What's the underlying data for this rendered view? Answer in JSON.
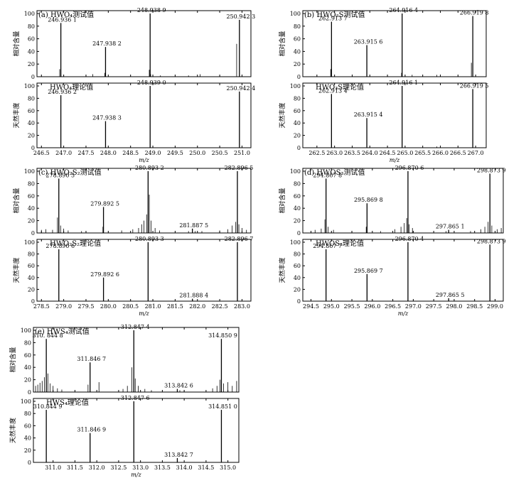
{
  "chart_data": [
    {
      "type": "bar",
      "panel": "a",
      "xlabel": "m/z",
      "xlim": [
        246.4,
        251.2
      ],
      "xticks": [
        246.5,
        247.0,
        247.5,
        248.0,
        248.5,
        249.0,
        249.5,
        250.0,
        250.5,
        251.0
      ],
      "tick_labels": [
        "246.5",
        "247.0",
        "247.5",
        "248.0",
        "248.5",
        "249.0",
        "249.5",
        "250.0",
        "250.5",
        "251.0"
      ],
      "top": {
        "title": "(a) HWO₄测试值",
        "ylabel": "相对含量",
        "ylim": [
          0,
          100
        ],
        "yticks": [
          0,
          20,
          40,
          60,
          80,
          100
        ],
        "peaks": [
          {
            "x": 246.9361,
            "y": 85,
            "label": "246.936 1"
          },
          {
            "x": 247.9382,
            "y": 47,
            "label": "247.938 2"
          },
          {
            "x": 248.9389,
            "y": 100,
            "label": "248.938 9"
          },
          {
            "x": 250.9423,
            "y": 90,
            "label": "250.942 3"
          }
        ],
        "minor": [
          {
            "x": 246.91,
            "y": 12
          },
          {
            "x": 247.92,
            "y": 6
          },
          {
            "x": 247.65,
            "y": 4
          },
          {
            "x": 248.92,
            "y": 11
          },
          {
            "x": 248.95,
            "y": 4
          },
          {
            "x": 249.17,
            "y": 2
          },
          {
            "x": 249.8,
            "y": 2
          },
          {
            "x": 250.06,
            "y": 4
          },
          {
            "x": 250.88,
            "y": 52
          }
        ]
      },
      "bottom": {
        "title": "HWO₄理论值",
        "ylabel": "天然丰度",
        "ylim": [
          0,
          100
        ],
        "yticks": [
          0,
          20,
          40,
          60,
          80,
          100
        ],
        "peaks": [
          {
            "x": 246.9362,
            "y": 85,
            "label": "246.936 2"
          },
          {
            "x": 247.9383,
            "y": 43,
            "label": "247.938 3"
          },
          {
            "x": 248.939,
            "y": 100,
            "label": "248.939 0"
          },
          {
            "x": 250.9424,
            "y": 91,
            "label": "250.942 4"
          }
        ]
      }
    },
    {
      "type": "bar",
      "panel": "b",
      "xlabel": "m/z",
      "xlim": [
        262.1,
        267.3
      ],
      "xticks": [
        262.5,
        263.0,
        263.5,
        264.0,
        264.5,
        265.0,
        265.5,
        266.0,
        266.5,
        267.0
      ],
      "tick_labels": [
        "262.5",
        "263.0",
        "263.5",
        "264.0",
        "264.5",
        "265.0",
        "265.5",
        "266.0",
        "266.5",
        "267.0"
      ],
      "top": {
        "title": "(b) HWO₃S测试值",
        "ylabel": "相对含量",
        "ylim": [
          0,
          100
        ],
        "yticks": [
          0,
          20,
          40,
          60,
          80,
          100
        ],
        "peaks": [
          {
            "x": 262.9137,
            "y": 87,
            "label": "262.913 7"
          },
          {
            "x": 263.9156,
            "y": 50,
            "label": "263.915 6"
          },
          {
            "x": 264.9164,
            "y": 100,
            "label": "264.916 4"
          },
          {
            "x": 266.9198,
            "y": 96,
            "label": "266.919 8"
          }
        ],
        "minor": [
          {
            "x": 262.89,
            "y": 12
          },
          {
            "x": 264.9,
            "y": 6
          },
          {
            "x": 265.2,
            "y": 3
          },
          {
            "x": 265.9,
            "y": 3
          },
          {
            "x": 266.88,
            "y": 22
          }
        ]
      },
      "bottom": {
        "title": "HWO₃S理论值",
        "ylabel": "天然丰度",
        "ylim": [
          0,
          100
        ],
        "yticks": [
          0,
          20,
          40,
          60,
          80,
          100
        ],
        "peaks": [
          {
            "x": 262.9134,
            "y": 87,
            "label": "262.913 4"
          },
          {
            "x": 263.9154,
            "y": 48,
            "label": "263.915 4"
          },
          {
            "x": 264.9161,
            "y": 100,
            "label": "264.916 1"
          },
          {
            "x": 266.9195,
            "y": 95,
            "label": "266.919 5"
          }
        ],
        "minor": [
          {
            "x": 265.9,
            "y": 2
          }
        ]
      }
    },
    {
      "type": "bar",
      "panel": "c",
      "xlabel": "m/z",
      "xlim": [
        278.4,
        283.2
      ],
      "xticks": [
        278.5,
        279.0,
        279.5,
        280.0,
        280.5,
        281.0,
        281.5,
        282.0,
        282.5,
        283.0
      ],
      "tick_labels": [
        "278.5",
        "279.0",
        "279.5",
        "280.0",
        "280.5",
        "281.0",
        "281.5",
        "282.0",
        "282.5",
        "283.0"
      ],
      "top": {
        "title": "(c) HWO₂S₂测试值",
        "ylabel": "相对含量",
        "ylim": [
          0,
          100
        ],
        "yticks": [
          0,
          20,
          40,
          60,
          80,
          100
        ],
        "peaks": [
          {
            "x": 278.8905,
            "y": 88,
            "label": "278.890 5"
          },
          {
            "x": 279.8925,
            "y": 42,
            "label": "279.892 5"
          },
          {
            "x": 280.8932,
            "y": 100,
            "label": "280.893 2"
          },
          {
            "x": 281.8875,
            "y": 7,
            "label": "281.887 5"
          },
          {
            "x": 282.8965,
            "y": 100,
            "label": "282.896 5"
          }
        ],
        "minor": [
          {
            "x": 278.5,
            "y": 5
          },
          {
            "x": 278.6,
            "y": 6
          },
          {
            "x": 278.75,
            "y": 5
          },
          {
            "x": 278.86,
            "y": 25
          },
          {
            "x": 278.93,
            "y": 12
          },
          {
            "x": 279.0,
            "y": 7
          },
          {
            "x": 279.1,
            "y": 4
          },
          {
            "x": 279.4,
            "y": 3
          },
          {
            "x": 279.88,
            "y": 10
          },
          {
            "x": 280.3,
            "y": 4
          },
          {
            "x": 280.55,
            "y": 6
          },
          {
            "x": 280.68,
            "y": 8
          },
          {
            "x": 280.75,
            "y": 14
          },
          {
            "x": 280.8,
            "y": 20
          },
          {
            "x": 280.86,
            "y": 30
          },
          {
            "x": 280.92,
            "y": 62
          },
          {
            "x": 280.96,
            "y": 20
          },
          {
            "x": 281.05,
            "y": 8
          },
          {
            "x": 281.15,
            "y": 4
          },
          {
            "x": 281.8,
            "y": 3
          },
          {
            "x": 281.95,
            "y": 3
          },
          {
            "x": 282.1,
            "y": 3
          },
          {
            "x": 282.5,
            "y": 4
          },
          {
            "x": 282.68,
            "y": 6
          },
          {
            "x": 282.78,
            "y": 12
          },
          {
            "x": 282.86,
            "y": 18
          },
          {
            "x": 282.93,
            "y": 14
          },
          {
            "x": 283.0,
            "y": 8
          },
          {
            "x": 283.1,
            "y": 5
          }
        ]
      },
      "bottom": {
        "title": "HWO₂S₂理论值",
        "ylabel": "天然丰度",
        "ylim": [
          0,
          100
        ],
        "yticks": [
          0,
          20,
          40,
          60,
          80,
          100
        ],
        "peaks": [
          {
            "x": 278.8906,
            "y": 88,
            "label": "278.890 6"
          },
          {
            "x": 279.8926,
            "y": 40,
            "label": "279.892 6"
          },
          {
            "x": 280.8933,
            "y": 100,
            "label": "280.893 3"
          },
          {
            "x": 281.8884,
            "y": 4,
            "label": "281.888 4"
          },
          {
            "x": 282.8967,
            "y": 100,
            "label": "282.896 7"
          }
        ]
      }
    },
    {
      "type": "bar",
      "panel": "d",
      "xlabel": "m/z",
      "xlim": [
        294.3,
        299.2
      ],
      "xticks": [
        294.5,
        295.0,
        295.5,
        296.0,
        296.5,
        297.0,
        297.5,
        298.0,
        298.5,
        299.0
      ],
      "tick_labels": [
        "294.5",
        "295.0",
        "295.5",
        "296.0",
        "296.5",
        "297.0",
        "297.5",
        "298.0",
        "298.5",
        "299.0"
      ],
      "top": {
        "title": "(d) HWOS₃测试值",
        "ylabel": "相对含量",
        "ylim": [
          0,
          100
        ],
        "yticks": [
          0,
          20,
          40,
          60,
          80,
          100
        ],
        "peaks": [
          {
            "x": 294.8678,
            "y": 88,
            "label": "294.867 8"
          },
          {
            "x": 295.8698,
            "y": 48,
            "label": "295.869 8"
          },
          {
            "x": 296.8706,
            "y": 100,
            "label": "296.870 6"
          },
          {
            "x": 297.8651,
            "y": 5,
            "label": "297.865 1"
          },
          {
            "x": 298.8739,
            "y": 96,
            "label": "298.873 9"
          }
        ],
        "minor": [
          {
            "x": 294.6,
            "y": 5
          },
          {
            "x": 294.75,
            "y": 7
          },
          {
            "x": 294.84,
            "y": 22
          },
          {
            "x": 294.92,
            "y": 10
          },
          {
            "x": 295.05,
            "y": 5
          },
          {
            "x": 295.5,
            "y": 3
          },
          {
            "x": 295.85,
            "y": 10
          },
          {
            "x": 296.2,
            "y": 3
          },
          {
            "x": 296.55,
            "y": 6
          },
          {
            "x": 296.7,
            "y": 10
          },
          {
            "x": 296.78,
            "y": 16
          },
          {
            "x": 296.84,
            "y": 24
          },
          {
            "x": 296.9,
            "y": 14
          },
          {
            "x": 296.98,
            "y": 8
          },
          {
            "x": 297.8,
            "y": 3
          },
          {
            "x": 298.4,
            "y": 3
          },
          {
            "x": 298.65,
            "y": 6
          },
          {
            "x": 298.75,
            "y": 10
          },
          {
            "x": 298.83,
            "y": 18
          },
          {
            "x": 298.92,
            "y": 12
          },
          {
            "x": 299.05,
            "y": 6
          },
          {
            "x": 299.15,
            "y": 8
          }
        ]
      },
      "bottom": {
        "title": "HWOS₃理论值",
        "ylabel": "天然丰度",
        "ylim": [
          0,
          100
        ],
        "yticks": [
          0,
          20,
          40,
          60,
          80,
          100
        ],
        "peaks": [
          {
            "x": 294.8677,
            "y": 88,
            "label": "294.867 7"
          },
          {
            "x": 295.8697,
            "y": 46,
            "label": "295.869 7"
          },
          {
            "x": 296.8704,
            "y": 100,
            "label": "296.870 4"
          },
          {
            "x": 297.8655,
            "y": 5,
            "label": "297.865 5"
          },
          {
            "x": 298.8739,
            "y": 96,
            "label": "298.873 9"
          }
        ]
      }
    },
    {
      "type": "bar",
      "panel": "e",
      "xlabel": "m/z",
      "xlim": [
        310.55,
        315.25
      ],
      "xticks": [
        311.0,
        311.5,
        312.0,
        312.5,
        313.0,
        313.5,
        314.0,
        314.5,
        315.0
      ],
      "tick_labels": [
        "311.0",
        "311.5",
        "312.0",
        "312.5",
        "313.0",
        "313.5",
        "314.0",
        "314.5",
        "315.0"
      ],
      "top": {
        "title": "(e) HWS₄测试值",
        "ylabel": "相对含量",
        "ylim": [
          0,
          100
        ],
        "yticks": [
          0,
          20,
          40,
          60,
          80,
          100
        ],
        "peaks": [
          {
            "x": 310.8448,
            "y": 86,
            "label": "310. 844 8"
          },
          {
            "x": 311.8467,
            "y": 48,
            "label": "311.846 7"
          },
          {
            "x": 312.8474,
            "y": 100,
            "label": "312.847 4"
          },
          {
            "x": 313.8426,
            "y": 5,
            "label": "313.842 6"
          },
          {
            "x": 314.8509,
            "y": 86,
            "label": "314.850 9"
          }
        ],
        "minor": [
          {
            "x": 310.6,
            "y": 10
          },
          {
            "x": 310.65,
            "y": 12
          },
          {
            "x": 310.7,
            "y": 15
          },
          {
            "x": 310.75,
            "y": 18
          },
          {
            "x": 310.8,
            "y": 24
          },
          {
            "x": 310.88,
            "y": 30
          },
          {
            "x": 310.93,
            "y": 14
          },
          {
            "x": 311.0,
            "y": 10
          },
          {
            "x": 311.1,
            "y": 6
          },
          {
            "x": 311.2,
            "y": 4
          },
          {
            "x": 311.8,
            "y": 12
          },
          {
            "x": 312.05,
            "y": 16
          },
          {
            "x": 312.6,
            "y": 5
          },
          {
            "x": 312.7,
            "y": 10
          },
          {
            "x": 312.8,
            "y": 40
          },
          {
            "x": 312.88,
            "y": 22
          },
          {
            "x": 312.95,
            "y": 10
          },
          {
            "x": 313.1,
            "y": 5
          },
          {
            "x": 313.25,
            "y": 3
          },
          {
            "x": 313.9,
            "y": 3
          },
          {
            "x": 314.0,
            "y": 3
          },
          {
            "x": 314.65,
            "y": 6
          },
          {
            "x": 314.75,
            "y": 10
          },
          {
            "x": 314.82,
            "y": 20
          },
          {
            "x": 314.9,
            "y": 14
          },
          {
            "x": 315.0,
            "y": 16
          },
          {
            "x": 315.1,
            "y": 10
          },
          {
            "x": 315.2,
            "y": 18
          }
        ]
      },
      "bottom": {
        "title": "HWS₄理论值",
        "ylabel": "天然丰度",
        "ylim": [
          0,
          100
        ],
        "yticks": [
          0,
          20,
          40,
          60,
          80,
          100
        ],
        "peaks": [
          {
            "x": 310.8449,
            "y": 86,
            "label": "310.844 9"
          },
          {
            "x": 311.8469,
            "y": 48,
            "label": "311.846 9"
          },
          {
            "x": 312.8476,
            "y": 100,
            "label": "312.847 6"
          },
          {
            "x": 313.8427,
            "y": 7,
            "label": "313.842 7"
          },
          {
            "x": 314.851,
            "y": 86,
            "label": "314.851 0"
          }
        ]
      }
    }
  ]
}
